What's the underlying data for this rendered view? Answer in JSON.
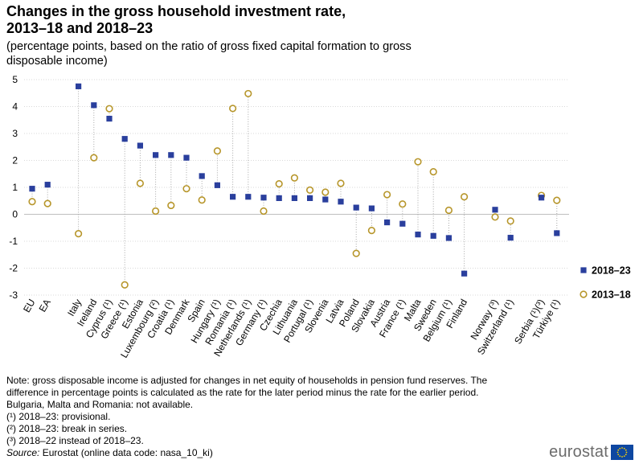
{
  "chart_data": {
    "type": "scatter",
    "title": "Changes in the gross household investment rate, 2013–18 and 2018–23",
    "subtitle": "(percentage points, based on the ratio of gross fixed capital formation to gross disposable income)",
    "ylim": [
      -3,
      5
    ],
    "yticks": [
      5,
      4,
      3,
      2,
      1,
      0,
      -1,
      -2,
      -3
    ],
    "grid": true,
    "legend_position": "right",
    "categories": [
      "EU",
      "EA",
      "Italy",
      "Ireland",
      "Cyprus (¹)",
      "Greece (¹)",
      "Estonia",
      "Luxembourg (²)",
      "Croatia (¹)",
      "Denmark",
      "Spain",
      "Hungary (¹)",
      "Romania (¹)",
      "Netherlands (¹)",
      "Germany (¹)",
      "Czechia",
      "Lithuania",
      "Portugal (¹)",
      "Slovenia",
      "Latvia",
      "Poland",
      "Slovakia",
      "Austria",
      "France (¹)",
      "Malta",
      "Sweden",
      "Belgium (¹)",
      "Finland",
      "Norway (³)",
      "Switzerland (¹)",
      "Serbia (¹)(³)",
      "Türkiye (¹)"
    ],
    "groups": [
      2,
      26,
      2,
      2
    ],
    "series": [
      {
        "name": "2018–23",
        "marker": "square",
        "color": "#2a3f9d",
        "values": [
          0.95,
          1.1,
          4.75,
          4.05,
          3.55,
          2.8,
          2.55,
          2.2,
          2.2,
          2.1,
          1.42,
          1.08,
          0.65,
          0.65,
          0.62,
          0.6,
          0.6,
          0.6,
          0.55,
          0.47,
          0.25,
          0.22,
          -0.3,
          -0.35,
          -0.75,
          -0.8,
          -0.88,
          -2.2,
          0.17,
          -0.87,
          0.62,
          -0.7
        ]
      },
      {
        "name": "2013–18",
        "marker": "circle",
        "color": "#b7962b",
        "values": [
          0.47,
          0.4,
          -0.72,
          2.1,
          3.92,
          -2.62,
          1.15,
          0.12,
          0.33,
          0.95,
          0.53,
          2.35,
          3.93,
          4.48,
          0.12,
          1.13,
          1.35,
          0.9,
          0.82,
          1.15,
          -1.45,
          -0.6,
          0.73,
          0.38,
          1.95,
          1.58,
          0.15,
          0.65,
          -0.1,
          -0.25,
          0.7,
          0.52
        ]
      }
    ]
  },
  "notes": {
    "line1": "Note: gross disposable income is adjusted for changes in net equity of households in pension fund reserves. The",
    "line2": "difference in percentage points is calculated as the rate for the later period minus the rate for the earlier period.",
    "line3": "Bulgaria, Malta and Romania: not available.",
    "fn1": "(¹) 2018–23: provisional.",
    "fn2": "(²) 2018–23: break in series.",
    "fn3": "(³) 2018–22 instead of 2018–23.",
    "source_label": "Source:",
    "source_text": " Eurostat (online data code: nasa_10_ki)"
  },
  "logo": {
    "text": "eurostat"
  },
  "colors": {
    "square": "#2a3f9d",
    "circle": "#b7962b",
    "grid": "#d9d9d9",
    "connector": "#a6a6a6"
  }
}
